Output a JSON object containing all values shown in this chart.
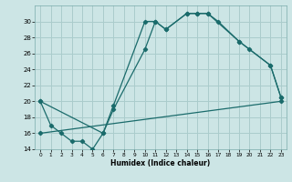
{
  "title": "",
  "xlabel": "Humidex (Indice chaleur)",
  "bg_color": "#cce5e5",
  "grid_color": "#aacccc",
  "line_color": "#1a6b6b",
  "xlim": [
    -0.5,
    23.5
  ],
  "ylim": [
    14,
    32
  ],
  "xticks": [
    0,
    1,
    2,
    3,
    4,
    5,
    6,
    7,
    8,
    9,
    10,
    11,
    12,
    13,
    14,
    15,
    16,
    17,
    18,
    19,
    20,
    21,
    22,
    23
  ],
  "yticks": [
    14,
    16,
    18,
    20,
    22,
    24,
    26,
    28,
    30
  ],
  "series": [
    {
      "x": [
        0,
        1,
        2,
        3,
        4,
        5,
        6,
        7,
        10,
        11,
        12,
        14,
        15,
        16,
        17,
        19,
        22,
        23
      ],
      "y": [
        20,
        17,
        16,
        15,
        15,
        14,
        16,
        19.5,
        30,
        30,
        29,
        31,
        31,
        31,
        30,
        27.5,
        24.5,
        20.5
      ]
    },
    {
      "x": [
        0,
        6,
        7,
        10,
        11,
        12,
        14,
        15,
        16,
        19,
        20,
        22,
        23
      ],
      "y": [
        20,
        16,
        19,
        26.5,
        30,
        29,
        31,
        31,
        31,
        27.5,
        26.5,
        24.5,
        20.5
      ]
    },
    {
      "x": [
        0,
        23
      ],
      "y": [
        16,
        20
      ]
    }
  ]
}
